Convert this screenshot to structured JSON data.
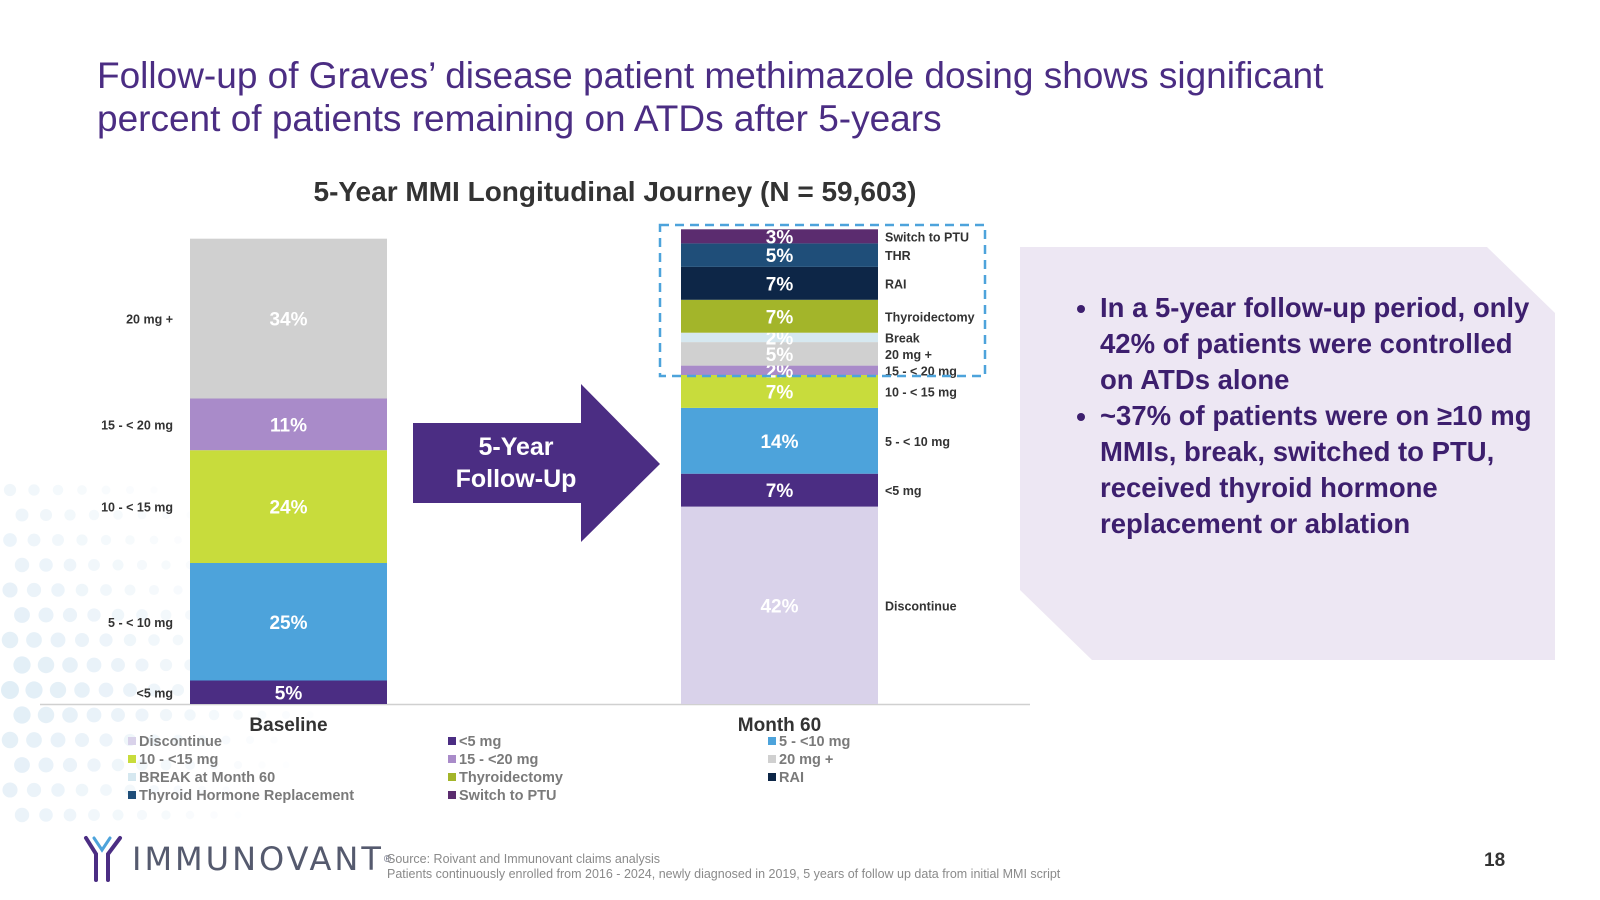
{
  "slide": {
    "title_line1": "Follow-up of Graves’ disease patient methimazole dosing shows significant",
    "title_line2": "percent of patients remaining on ATDs after 5-years",
    "page_number": "18"
  },
  "arrow_label_line1": "5-Year",
  "arrow_label_line2": "Follow-Up",
  "callout": {
    "bullets": [
      "In a 5-year follow-up period, only 42% of patients were controlled on ATDs alone",
      "~37% of patients were on ≥10 mg MMIs, break, switched to PTU, received thyroid hormone replacement or ablation"
    ]
  },
  "source": {
    "line1": "Source: Roivant and Immunovant claims analysis",
    "line2": "Patients continuously enrolled from 2016 - 2024, newly diagnosed in 2019, 5 years of follow up data from initial MMI script"
  },
  "logo": {
    "text": "IMMUNOVANT",
    "reg": "®"
  },
  "legend": {
    "col1": [
      {
        "label": "Discontinue",
        "color": "#d9d2ea"
      },
      {
        "label": "10 - <15 mg",
        "color": "#c8dc3c"
      },
      {
        "label": "BREAK at Month 60",
        "color": "#d6e8f0"
      },
      {
        "label": "Thyroid Hormone Replacement",
        "color": "#1f4e79"
      }
    ],
    "col2": [
      {
        "label": "<5 mg",
        "color": "#4b2d83"
      },
      {
        "label": "15 - <20 mg",
        "color": "#a98bc9"
      },
      {
        "label": "Thyroidectomy",
        "color": "#a3b52a"
      },
      {
        "label": "Switch to PTU",
        "color": "#5b2c6f"
      }
    ],
    "col3": [
      {
        "label": "5 - <10 mg",
        "color": "#4da3db"
      },
      {
        "label": "20 mg +",
        "color": "#d0d0d0"
      },
      {
        "label": "RAI",
        "color": "#0d2647"
      }
    ]
  },
  "chart_data": {
    "type": "bar",
    "stacked": true,
    "title": "5-Year MMI Longitudinal Journey (N = 59,603)",
    "categories": [
      "Baseline",
      "Month 60"
    ],
    "ylim": [
      0,
      100
    ],
    "baseline": {
      "segments": [
        {
          "name": "<5 mg",
          "label": "<5 mg",
          "value": 5,
          "text": "5%",
          "color": "#4b2d83",
          "text_color": "#ffffff"
        },
        {
          "name": "5 - <10 mg",
          "label": "5 - < 10 mg",
          "value": 25,
          "text": "25%",
          "color": "#4da3db",
          "text_color": "#ffffff"
        },
        {
          "name": "10 - <15 mg",
          "label": "10 - < 15 mg",
          "value": 24,
          "text": "24%",
          "color": "#c8dc3c",
          "text_color": "#ffffff"
        },
        {
          "name": "15 - <20 mg",
          "label": "15 - < 20 mg",
          "value": 11,
          "text": "11%",
          "color": "#a98bc9",
          "text_color": "#ffffff"
        },
        {
          "name": "20 mg +",
          "label": "20 mg +",
          "value": 34,
          "text": "34%",
          "color": "#d0d0d0",
          "text_color": "#ffffff"
        }
      ]
    },
    "month60": {
      "segments": [
        {
          "name": "Discontinue",
          "label": "Discontinue",
          "value": 42,
          "text": "42%",
          "color": "#d9d2ea",
          "text_color": "#ffffff"
        },
        {
          "name": "<5 mg",
          "label": "<5 mg",
          "value": 7,
          "text": "7%",
          "color": "#4b2d83",
          "text_color": "#ffffff"
        },
        {
          "name": "5 - <10 mg",
          "label": "5 - < 10 mg",
          "value": 14,
          "text": "14%",
          "color": "#4da3db",
          "text_color": "#ffffff"
        },
        {
          "name": "10 - <15 mg",
          "label": "10 - < 15 mg",
          "value": 7,
          "text": "7%",
          "color": "#c8dc3c",
          "text_color": "#ffffff"
        },
        {
          "name": "15 - <20 mg",
          "label": "15 - < 20 mg",
          "value": 2,
          "text": "2%",
          "color": "#a98bc9",
          "text_color": "#ffffff"
        },
        {
          "name": "20 mg +",
          "label": "20 mg +",
          "value": 5,
          "text": "5%",
          "color": "#d0d0d0",
          "text_color": "#ffffff"
        },
        {
          "name": "BREAK at Month 60",
          "label": "Break",
          "value": 2,
          "text": "2%",
          "color": "#d6e8f0",
          "text_color": "#ffffff"
        },
        {
          "name": "Thyroidectomy",
          "label": "Thyroidectomy",
          "value": 7,
          "text": "7%",
          "color": "#a3b52a",
          "text_color": "#ffffff"
        },
        {
          "name": "RAI",
          "label": "RAI",
          "value": 7,
          "text": "7%",
          "color": "#0d2647",
          "text_color": "#ffffff"
        },
        {
          "name": "Thyroid Hormone Replacement",
          "label": "THR",
          "value": 5,
          "text": "5%",
          "color": "#1f4e79",
          "text_color": "#ffffff"
        },
        {
          "name": "Switch to PTU",
          "label": "Switch to PTU",
          "value": 3,
          "text": "3%",
          "color": "#5b2c6f",
          "text_color": "#ffffff"
        }
      ]
    }
  }
}
